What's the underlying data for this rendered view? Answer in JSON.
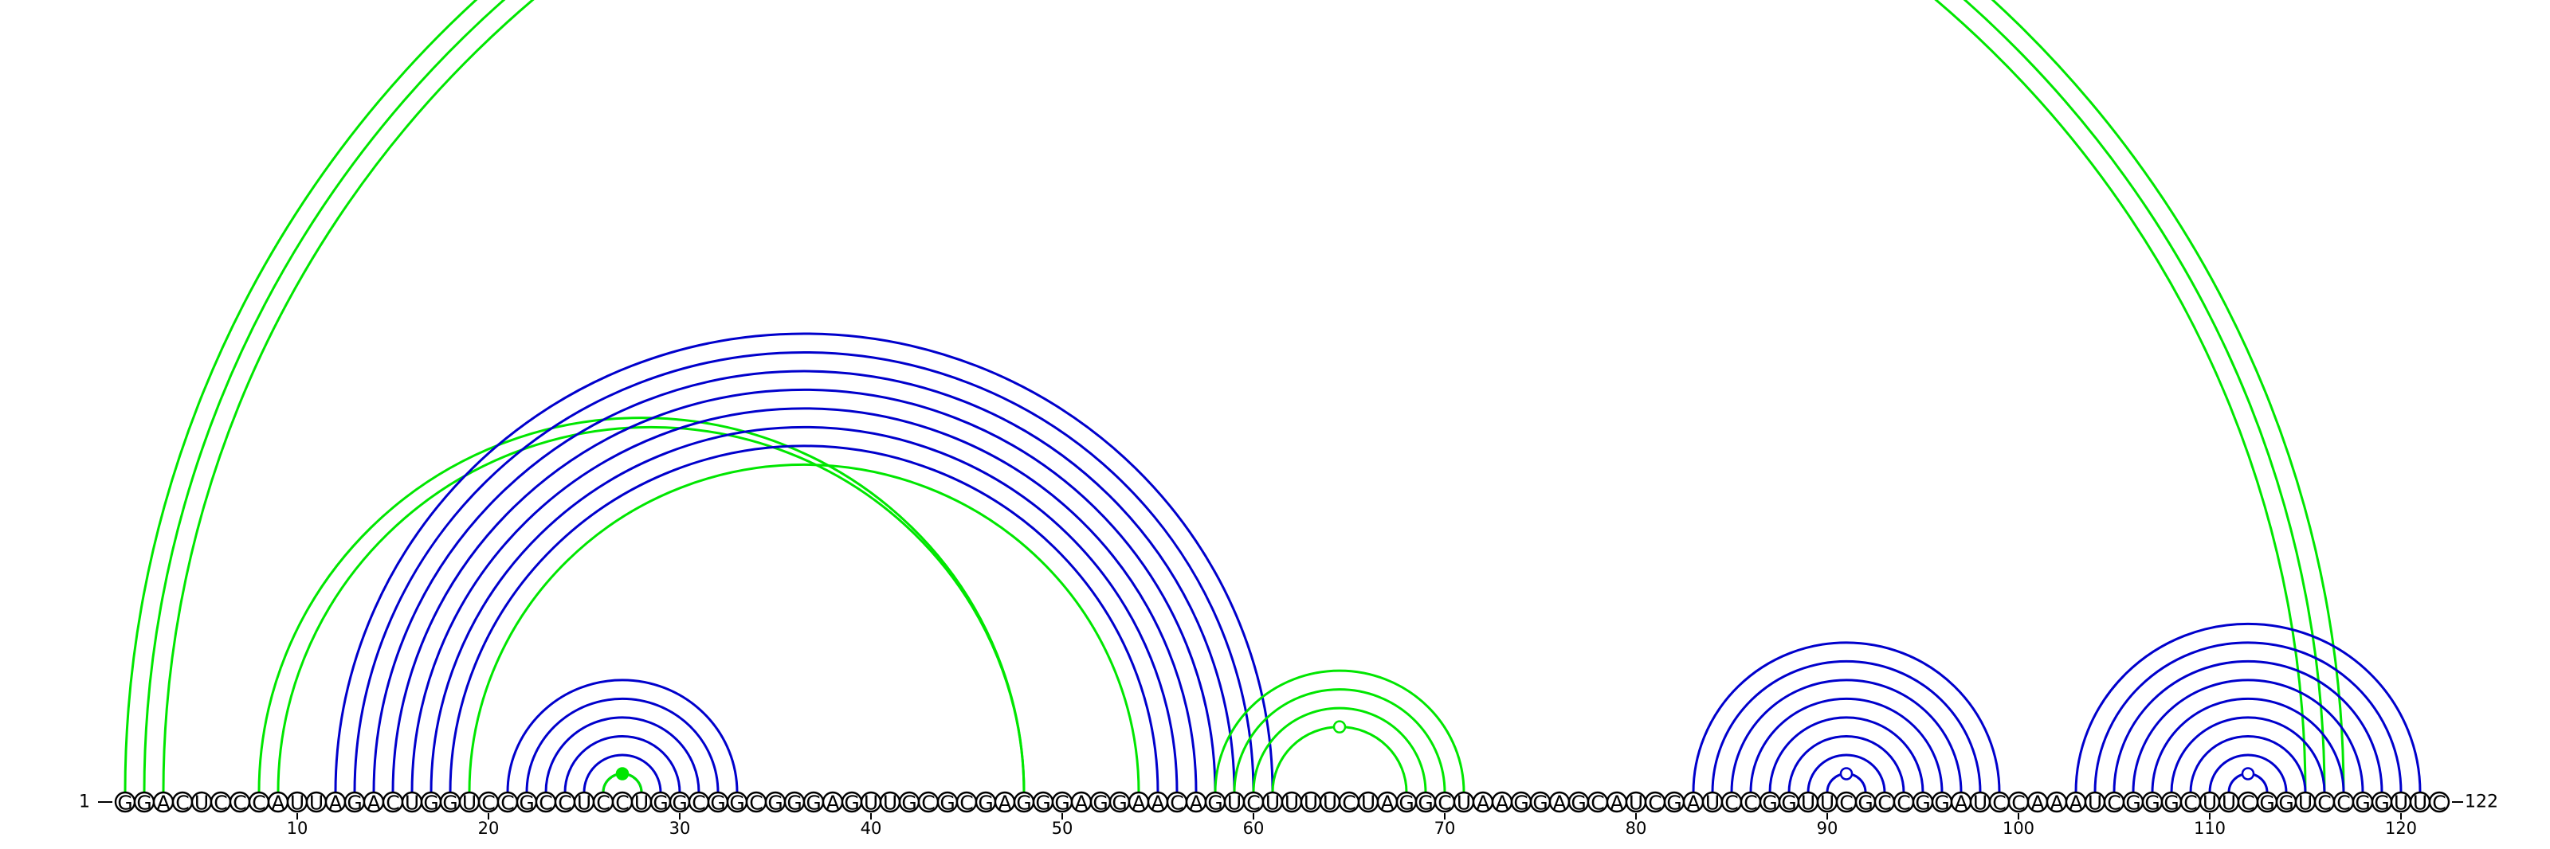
{
  "sequence": "GGACUCCCAUUAGACUGGUCCGCCUCCUGGCGGCGGGAGUUGCGCGAGGGAGGAACAGUCUUUUCUAGGCUAAGGAGCAUCGAUCCGGUUCGCCGGAUCCAAAUCGGGCUUCGGUCCGGUUC",
  "start_label": "1",
  "end_label": "122",
  "ticks": [
    {
      "index": 10,
      "label": "10"
    },
    {
      "index": 20,
      "label": "20"
    },
    {
      "index": 30,
      "label": "30"
    },
    {
      "index": 40,
      "label": "40"
    },
    {
      "index": 50,
      "label": "50"
    },
    {
      "index": 60,
      "label": "60"
    },
    {
      "index": 70,
      "label": "70"
    },
    {
      "index": 80,
      "label": "80"
    },
    {
      "index": 90,
      "label": "90"
    },
    {
      "index": 100,
      "label": "100"
    },
    {
      "index": 110,
      "label": "110"
    },
    {
      "index": 120,
      "label": "120"
    }
  ],
  "colors": {
    "blue_arcs": "#0000cc",
    "green_arcs": "#00e600"
  },
  "arc_groups": [
    {
      "name": "outer-long-green",
      "color": "green",
      "pairs": [
        [
          1,
          117
        ],
        [
          2,
          116
        ],
        [
          3,
          115
        ]
      ]
    },
    {
      "name": "green-8-48",
      "color": "green",
      "pairs": [
        [
          8,
          48
        ],
        [
          9,
          48
        ]
      ]
    },
    {
      "name": "green-19-54",
      "color": "green",
      "pairs": [
        [
          19,
          54
        ]
      ]
    },
    {
      "name": "blue-12-61",
      "color": "blue",
      "pairs": [
        [
          12,
          61
        ],
        [
          13,
          60
        ],
        [
          14,
          59
        ],
        [
          15,
          58
        ],
        [
          16,
          57
        ],
        [
          17,
          56
        ],
        [
          18,
          55
        ]
      ]
    },
    {
      "name": "blue-21-33",
      "color": "blue",
      "pairs": [
        [
          21,
          33
        ],
        [
          22,
          32
        ],
        [
          23,
          31
        ],
        [
          24,
          30
        ],
        [
          25,
          29
        ],
        [
          26,
          28
        ]
      ]
    },
    {
      "name": "green-26-28-marker",
      "color": "green",
      "pairs": [
        [
          26,
          28
        ]
      ],
      "marker": "filled"
    },
    {
      "name": "green-58-71",
      "color": "green",
      "pairs": [
        [
          58,
          71
        ],
        [
          59,
          70
        ],
        [
          60,
          69
        ],
        [
          61,
          68
        ]
      ],
      "marker": "open"
    },
    {
      "name": "blue-83-99",
      "color": "blue",
      "pairs": [
        [
          83,
          99
        ],
        [
          84,
          98
        ],
        [
          85,
          97
        ],
        [
          86,
          96
        ],
        [
          87,
          95
        ],
        [
          88,
          94
        ],
        [
          89,
          93
        ],
        [
          90,
          92
        ]
      ],
      "marker": "open"
    },
    {
      "name": "blue-103-122",
      "color": "blue",
      "pairs": [
        [
          103,
          121
        ],
        [
          104,
          120
        ],
        [
          105,
          119
        ],
        [
          106,
          118
        ],
        [
          107,
          117
        ],
        [
          108,
          116
        ],
        [
          109,
          115
        ],
        [
          110,
          114
        ],
        [
          111,
          113
        ]
      ],
      "marker": "open"
    }
  ]
}
